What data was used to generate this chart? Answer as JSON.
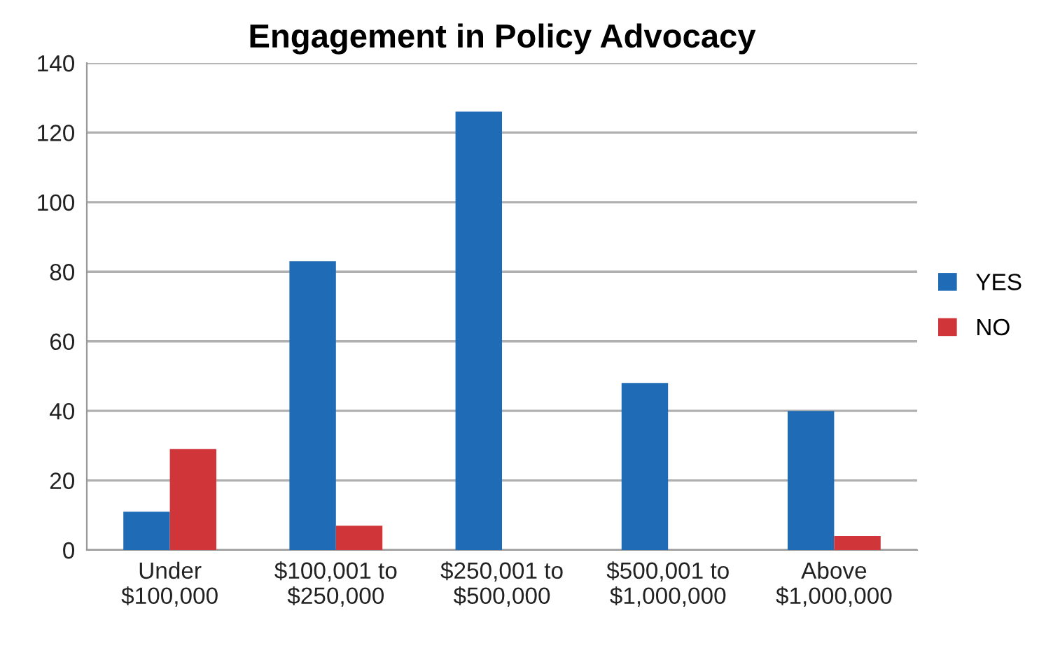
{
  "chart_data": {
    "type": "bar",
    "title": "Engagement in Policy Advocacy",
    "categories": [
      "Under\n$100,000",
      "$100,001 to\n$250,000",
      "$250,001 to\n$500,000",
      "$500,001 to\n$1,000,000",
      "Above\n$1,000,000"
    ],
    "series": [
      {
        "name": "YES",
        "color": "#1f6bb5",
        "values": [
          11,
          83,
          126,
          48,
          40
        ]
      },
      {
        "name": "NO",
        "color": "#d0353a",
        "values": [
          29,
          7,
          0,
          0,
          4
        ]
      }
    ],
    "ylim": [
      0,
      140
    ],
    "yticks": [
      0,
      20,
      40,
      60,
      80,
      100,
      120,
      140
    ],
    "grid": "y",
    "legend": "right"
  }
}
